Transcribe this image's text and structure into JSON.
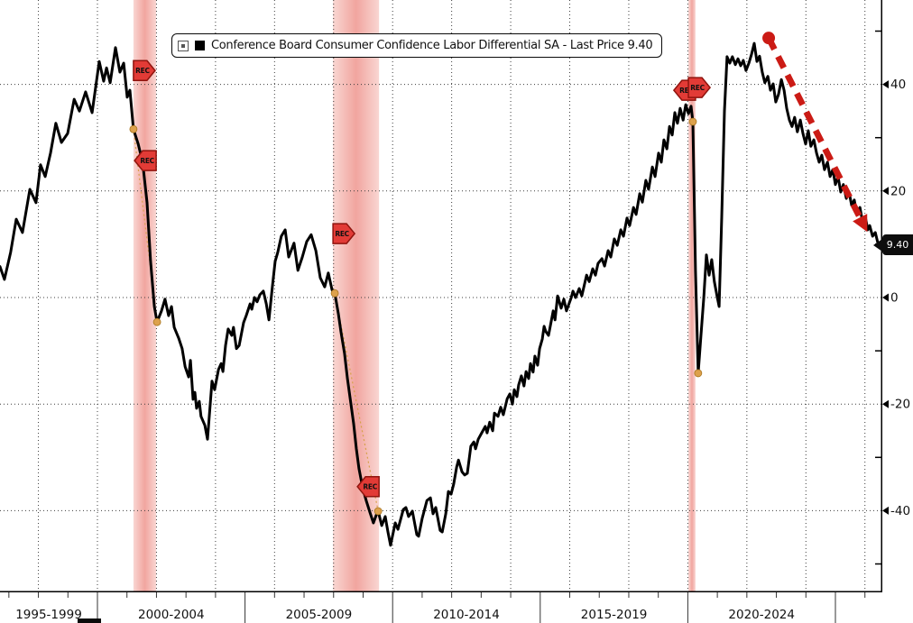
{
  "legend": {
    "label": "Conference Board Consumer Confidence Labor Differential SA - Last Price 9.40",
    "swatch_color": "#000000"
  },
  "last_price": {
    "text": "9.40",
    "value": 9.4
  },
  "colors": {
    "background": "#ffffff",
    "line": "#000000",
    "grid": "#3c3c3c",
    "axis": "#000000",
    "recession_band_edge": "#f9d6d2",
    "recession_band_center": "#f1a59f",
    "rec_badge_fill": "#e23b36",
    "rec_badge_border": "#8f140e",
    "rec_badge_text": "#1a0402",
    "marker_dot": "#dda14c",
    "marker_dot_edge": "#a8751f",
    "connector": "#d7a04a",
    "trend_arrow": "#cb1b15",
    "last_price_bg": "#0d0d0d",
    "last_price_text": "#ffffff"
  },
  "chart_data": {
    "type": "line",
    "title": "Conference Board Consumer Confidence Labor Differential SA",
    "legend_position": "top",
    "grid": "dotted",
    "y_axis_side": "right",
    "y_ticks_major": [
      40,
      20,
      0,
      -20,
      -40
    ],
    "y_ticks_minor": [
      50,
      30,
      10,
      -10,
      -30,
      -50
    ],
    "y_range": [
      -55.3,
      55.8
    ],
    "x_range_years": [
      1996.7,
      2026.9
    ],
    "x_separator_years": [
      2000,
      2005,
      2010,
      2015,
      2020,
      2025
    ],
    "x_year_ticks_start": 1997,
    "x_year_ticks_end": 2026,
    "x_labels": [
      {
        "text": "1995-1999",
        "center_year": 1998.35
      },
      {
        "text": "2000-2004",
        "center_year": 2002.5
      },
      {
        "text": "2005-2009",
        "center_year": 2007.5
      },
      {
        "text": "2010-2014",
        "center_year": 2012.5
      },
      {
        "text": "2015-2019",
        "center_year": 2017.5
      },
      {
        "text": "2020-2024",
        "center_year": 2022.5
      }
    ],
    "recessions": [
      {
        "start": 2001.22,
        "end": 2001.99
      },
      {
        "start": 2007.98,
        "end": 2009.54
      },
      {
        "start": 2020.02,
        "end": 2020.26
      }
    ],
    "rec_badges": [
      {
        "band": 0,
        "dir": "right",
        "value": 42.6,
        "label": "REC"
      },
      {
        "band": 0,
        "dir": "left",
        "value": 25.7,
        "label": "REC"
      },
      {
        "band": 1,
        "dir": "right",
        "value": 12.0,
        "label": "REC"
      },
      {
        "band": 1,
        "dir": "left",
        "value": -35.5,
        "label": "REC"
      },
      {
        "band": 2,
        "dir": "left",
        "value": 38.9,
        "label": "REC"
      },
      {
        "band": 2,
        "dir": "right",
        "value": 39.4,
        "label": "REC"
      }
    ],
    "markers": [
      [
        2001.22,
        31.6
      ],
      [
        2002.02,
        -4.6
      ],
      [
        2008.04,
        0.8
      ],
      [
        2009.51,
        -40.1
      ],
      [
        2020.17,
        33.0
      ],
      [
        2020.35,
        -14.2
      ]
    ],
    "trend_arrow": {
      "from": [
        2022.74,
        48.7
      ],
      "to": [
        2026.08,
        12.3
      ]
    },
    "series_name": "Conference Board Consumer Confidence Labor Differential SA",
    "series": [
      [
        1996.7,
        5.8
      ],
      [
        1996.85,
        3.4
      ],
      [
        1997.06,
        8.5
      ],
      [
        1997.25,
        14.7
      ],
      [
        1997.46,
        12.2
      ],
      [
        1997.71,
        20.3
      ],
      [
        1997.92,
        17.8
      ],
      [
        1998.07,
        24.9
      ],
      [
        1998.23,
        22.7
      ],
      [
        1998.41,
        27.1
      ],
      [
        1998.59,
        32.7
      ],
      [
        1998.78,
        29.1
      ],
      [
        1998.99,
        30.8
      ],
      [
        1999.21,
        37.2
      ],
      [
        1999.39,
        35.0
      ],
      [
        1999.6,
        38.6
      ],
      [
        1999.82,
        34.7
      ],
      [
        2000.06,
        44.3
      ],
      [
        2000.21,
        40.6
      ],
      [
        2000.31,
        43.1
      ],
      [
        2000.43,
        40.3
      ],
      [
        2000.61,
        46.9
      ],
      [
        2000.76,
        42.3
      ],
      [
        2000.89,
        44.0
      ],
      [
        2001.01,
        37.6
      ],
      [
        2001.1,
        38.9
      ],
      [
        2001.22,
        31.6
      ],
      [
        2001.38,
        28.8
      ],
      [
        2001.53,
        25.4
      ],
      [
        2001.68,
        17.8
      ],
      [
        2001.8,
        6.8
      ],
      [
        2001.93,
        -1.7
      ],
      [
        2002.02,
        -4.6
      ],
      [
        2002.17,
        -2.5
      ],
      [
        2002.29,
        -0.3
      ],
      [
        2002.41,
        -3.4
      ],
      [
        2002.51,
        -1.7
      ],
      [
        2002.6,
        -5.6
      ],
      [
        2002.75,
        -7.6
      ],
      [
        2002.87,
        -9.6
      ],
      [
        2002.97,
        -13.0
      ],
      [
        2003.09,
        -14.9
      ],
      [
        2003.15,
        -11.8
      ],
      [
        2003.24,
        -19.1
      ],
      [
        2003.3,
        -17.8
      ],
      [
        2003.36,
        -20.8
      ],
      [
        2003.45,
        -19.5
      ],
      [
        2003.51,
        -22.3
      ],
      [
        2003.64,
        -24.0
      ],
      [
        2003.73,
        -26.6
      ],
      [
        2003.88,
        -15.7
      ],
      [
        2003.97,
        -17.3
      ],
      [
        2004.1,
        -13.5
      ],
      [
        2004.19,
        -12.4
      ],
      [
        2004.25,
        -13.9
      ],
      [
        2004.34,
        -9.0
      ],
      [
        2004.43,
        -5.9
      ],
      [
        2004.55,
        -7.1
      ],
      [
        2004.61,
        -5.6
      ],
      [
        2004.71,
        -9.6
      ],
      [
        2004.8,
        -9.0
      ],
      [
        2004.95,
        -4.7
      ],
      [
        2005.04,
        -3.4
      ],
      [
        2005.17,
        -1.2
      ],
      [
        2005.23,
        -2.2
      ],
      [
        2005.32,
        0.0
      ],
      [
        2005.41,
        -0.8
      ],
      [
        2005.5,
        0.5
      ],
      [
        2005.62,
        1.2
      ],
      [
        2005.72,
        -1.2
      ],
      [
        2005.81,
        -4.2
      ],
      [
        2005.93,
        2.2
      ],
      [
        2006.02,
        6.8
      ],
      [
        2006.11,
        8.5
      ],
      [
        2006.23,
        11.5
      ],
      [
        2006.36,
        12.7
      ],
      [
        2006.48,
        7.6
      ],
      [
        2006.66,
        10.2
      ],
      [
        2006.79,
        5.1
      ],
      [
        2006.94,
        7.6
      ],
      [
        2007.09,
        10.5
      ],
      [
        2007.24,
        11.8
      ],
      [
        2007.4,
        8.8
      ],
      [
        2007.55,
        3.7
      ],
      [
        2007.7,
        2.0
      ],
      [
        2007.82,
        4.6
      ],
      [
        2007.95,
        1.4
      ],
      [
        2008.04,
        0.8
      ],
      [
        2008.16,
        -3.0
      ],
      [
        2008.25,
        -6.4
      ],
      [
        2008.37,
        -10.5
      ],
      [
        2008.47,
        -15.2
      ],
      [
        2008.56,
        -18.9
      ],
      [
        2008.68,
        -23.7
      ],
      [
        2008.77,
        -28.4
      ],
      [
        2008.86,
        -32.1
      ],
      [
        2008.99,
        -35.9
      ],
      [
        2009.11,
        -38.2
      ],
      [
        2009.23,
        -40.3
      ],
      [
        2009.35,
        -42.3
      ],
      [
        2009.44,
        -40.9
      ],
      [
        2009.51,
        -40.1
      ],
      [
        2009.63,
        -42.8
      ],
      [
        2009.75,
        -41.1
      ],
      [
        2009.84,
        -44.0
      ],
      [
        2009.93,
        -46.5
      ],
      [
        2010.09,
        -42.3
      ],
      [
        2010.18,
        -43.5
      ],
      [
        2010.36,
        -39.8
      ],
      [
        2010.45,
        -39.4
      ],
      [
        2010.54,
        -41.1
      ],
      [
        2010.67,
        -40.1
      ],
      [
        2010.82,
        -44.5
      ],
      [
        2010.88,
        -44.8
      ],
      [
        2011.0,
        -41.5
      ],
      [
        2011.16,
        -38.1
      ],
      [
        2011.28,
        -37.6
      ],
      [
        2011.37,
        -40.6
      ],
      [
        2011.46,
        -39.4
      ],
      [
        2011.61,
        -43.7
      ],
      [
        2011.68,
        -44.0
      ],
      [
        2011.8,
        -40.6
      ],
      [
        2011.89,
        -36.4
      ],
      [
        2011.98,
        -36.9
      ],
      [
        2012.07,
        -35.0
      ],
      [
        2012.17,
        -31.8
      ],
      [
        2012.23,
        -30.5
      ],
      [
        2012.35,
        -32.7
      ],
      [
        2012.44,
        -33.3
      ],
      [
        2012.53,
        -33.0
      ],
      [
        2012.65,
        -27.9
      ],
      [
        2012.75,
        -27.1
      ],
      [
        2012.81,
        -28.4
      ],
      [
        2012.9,
        -26.6
      ],
      [
        2012.99,
        -25.7
      ],
      [
        2013.14,
        -24.2
      ],
      [
        2013.2,
        -25.4
      ],
      [
        2013.29,
        -23.4
      ],
      [
        2013.39,
        -25.0
      ],
      [
        2013.45,
        -21.7
      ],
      [
        2013.57,
        -22.3
      ],
      [
        2013.66,
        -20.6
      ],
      [
        2013.75,
        -22.0
      ],
      [
        2013.88,
        -19.0
      ],
      [
        2013.97,
        -18.1
      ],
      [
        2014.06,
        -20.0
      ],
      [
        2014.12,
        -17.3
      ],
      [
        2014.21,
        -18.6
      ],
      [
        2014.27,
        -16.4
      ],
      [
        2014.36,
        -14.7
      ],
      [
        2014.45,
        -16.6
      ],
      [
        2014.52,
        -13.9
      ],
      [
        2014.61,
        -15.2
      ],
      [
        2014.67,
        -12.4
      ],
      [
        2014.76,
        -14.0
      ],
      [
        2014.82,
        -11.0
      ],
      [
        2014.91,
        -12.7
      ],
      [
        2014.98,
        -9.6
      ],
      [
        2015.07,
        -7.8
      ],
      [
        2015.13,
        -5.4
      ],
      [
        2015.19,
        -6.4
      ],
      [
        2015.28,
        -7.1
      ],
      [
        2015.44,
        -2.5
      ],
      [
        2015.5,
        -4.2
      ],
      [
        2015.59,
        0.3
      ],
      [
        2015.71,
        -2.0
      ],
      [
        2015.8,
        -0.3
      ],
      [
        2015.89,
        -2.5
      ],
      [
        2016.05,
        0.0
      ],
      [
        2016.11,
        1.2
      ],
      [
        2016.2,
        0.0
      ],
      [
        2016.32,
        1.7
      ],
      [
        2016.41,
        0.3
      ],
      [
        2016.57,
        4.2
      ],
      [
        2016.66,
        3.0
      ],
      [
        2016.78,
        5.4
      ],
      [
        2016.87,
        4.2
      ],
      [
        2016.96,
        6.4
      ],
      [
        2017.09,
        7.3
      ],
      [
        2017.18,
        5.9
      ],
      [
        2017.3,
        8.8
      ],
      [
        2017.39,
        7.6
      ],
      [
        2017.51,
        11.0
      ],
      [
        2017.61,
        9.8
      ],
      [
        2017.73,
        12.7
      ],
      [
        2017.82,
        11.5
      ],
      [
        2017.94,
        14.9
      ],
      [
        2018.03,
        13.5
      ],
      [
        2018.16,
        16.9
      ],
      [
        2018.25,
        15.6
      ],
      [
        2018.37,
        19.5
      ],
      [
        2018.46,
        17.9
      ],
      [
        2018.58,
        22.0
      ],
      [
        2018.67,
        20.3
      ],
      [
        2018.8,
        24.5
      ],
      [
        2018.89,
        22.7
      ],
      [
        2019.01,
        27.1
      ],
      [
        2019.1,
        25.4
      ],
      [
        2019.19,
        29.6
      ],
      [
        2019.29,
        27.9
      ],
      [
        2019.38,
        32.1
      ],
      [
        2019.47,
        30.5
      ],
      [
        2019.56,
        34.7
      ],
      [
        2019.65,
        32.7
      ],
      [
        2019.74,
        35.5
      ],
      [
        2019.84,
        33.3
      ],
      [
        2019.93,
        36.2
      ],
      [
        2020.02,
        34.5
      ],
      [
        2020.11,
        35.9
      ],
      [
        2020.17,
        33.0
      ],
      [
        2020.26,
        5.1
      ],
      [
        2020.35,
        -14.2
      ],
      [
        2020.45,
        -6.8
      ],
      [
        2020.54,
        0.0
      ],
      [
        2020.63,
        8.0
      ],
      [
        2020.72,
        4.2
      ],
      [
        2020.81,
        7.1
      ],
      [
        2020.9,
        3.0
      ],
      [
        2021.0,
        0.0
      ],
      [
        2021.06,
        -1.7
      ],
      [
        2021.15,
        15.2
      ],
      [
        2021.24,
        35.0
      ],
      [
        2021.33,
        45.2
      ],
      [
        2021.42,
        44.0
      ],
      [
        2021.51,
        45.2
      ],
      [
        2021.61,
        43.7
      ],
      [
        2021.7,
        44.8
      ],
      [
        2021.79,
        43.5
      ],
      [
        2021.88,
        44.5
      ],
      [
        2021.97,
        42.6
      ],
      [
        2022.07,
        44.0
      ],
      [
        2022.16,
        45.7
      ],
      [
        2022.25,
        47.7
      ],
      [
        2022.34,
        44.3
      ],
      [
        2022.43,
        45.3
      ],
      [
        2022.52,
        42.3
      ],
      [
        2022.61,
        40.3
      ],
      [
        2022.71,
        41.5
      ],
      [
        2022.8,
        38.9
      ],
      [
        2022.89,
        40.1
      ],
      [
        2022.98,
        36.7
      ],
      [
        2023.07,
        38.1
      ],
      [
        2023.17,
        40.9
      ],
      [
        2023.26,
        38.9
      ],
      [
        2023.35,
        35.5
      ],
      [
        2023.44,
        33.3
      ],
      [
        2023.53,
        32.1
      ],
      [
        2023.62,
        33.8
      ],
      [
        2023.71,
        31.1
      ],
      [
        2023.81,
        33.3
      ],
      [
        2023.9,
        30.8
      ],
      [
        2023.99,
        28.8
      ],
      [
        2024.08,
        31.3
      ],
      [
        2024.17,
        28.4
      ],
      [
        2024.27,
        29.6
      ],
      [
        2024.36,
        27.1
      ],
      [
        2024.45,
        25.4
      ],
      [
        2024.54,
        26.7
      ],
      [
        2024.63,
        24.0
      ],
      [
        2024.73,
        25.4
      ],
      [
        2024.82,
        22.7
      ],
      [
        2024.91,
        24.0
      ],
      [
        2025.0,
        21.2
      ],
      [
        2025.09,
        22.7
      ],
      [
        2025.18,
        19.8
      ],
      [
        2025.27,
        21.2
      ],
      [
        2025.37,
        18.6
      ],
      [
        2025.46,
        19.8
      ],
      [
        2025.55,
        17.3
      ],
      [
        2025.64,
        18.3
      ],
      [
        2025.73,
        15.6
      ],
      [
        2025.83,
        16.9
      ],
      [
        2025.92,
        14.2
      ],
      [
        2026.01,
        15.2
      ],
      [
        2026.1,
        12.7
      ],
      [
        2026.16,
        13.5
      ],
      [
        2026.26,
        11.5
      ],
      [
        2026.35,
        12.2
      ],
      [
        2026.44,
        10.2
      ],
      [
        2026.5,
        9.4
      ]
    ]
  }
}
